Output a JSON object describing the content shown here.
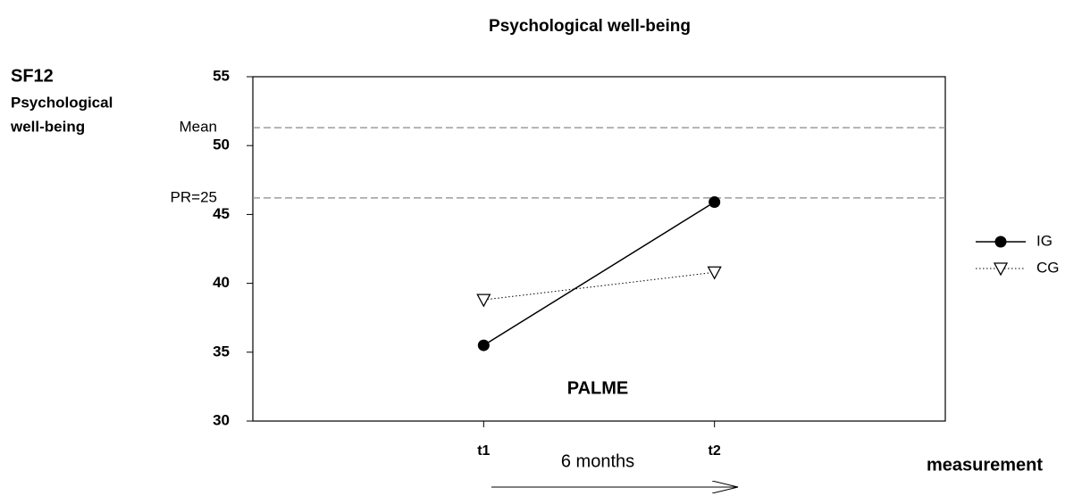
{
  "chart_data": {
    "type": "line",
    "title": "Psychological well-being",
    "ylabel": [
      "SF12",
      "Psychological",
      "well-being"
    ],
    "xlabel": "measurement",
    "categories": [
      "t1",
      "t2"
    ],
    "series": [
      {
        "name": "IG",
        "color": "#000000",
        "line_style": "solid",
        "marker": "circle",
        "values": [
          35.5,
          45.9
        ]
      },
      {
        "name": "CG",
        "color": "#000000",
        "line_style": "dotted",
        "marker": "triangle-down",
        "values": [
          38.8,
          40.8
        ]
      }
    ],
    "ylim": [
      30,
      55
    ],
    "yticks": [
      30,
      35,
      40,
      45,
      50,
      55
    ],
    "reference_lines": [
      {
        "label": "Mean",
        "value": 51.3
      },
      {
        "label": "PR=25",
        "value": 46.2
      }
    ],
    "annotations": [
      "PALME",
      "6 months"
    ],
    "legend": "right"
  }
}
